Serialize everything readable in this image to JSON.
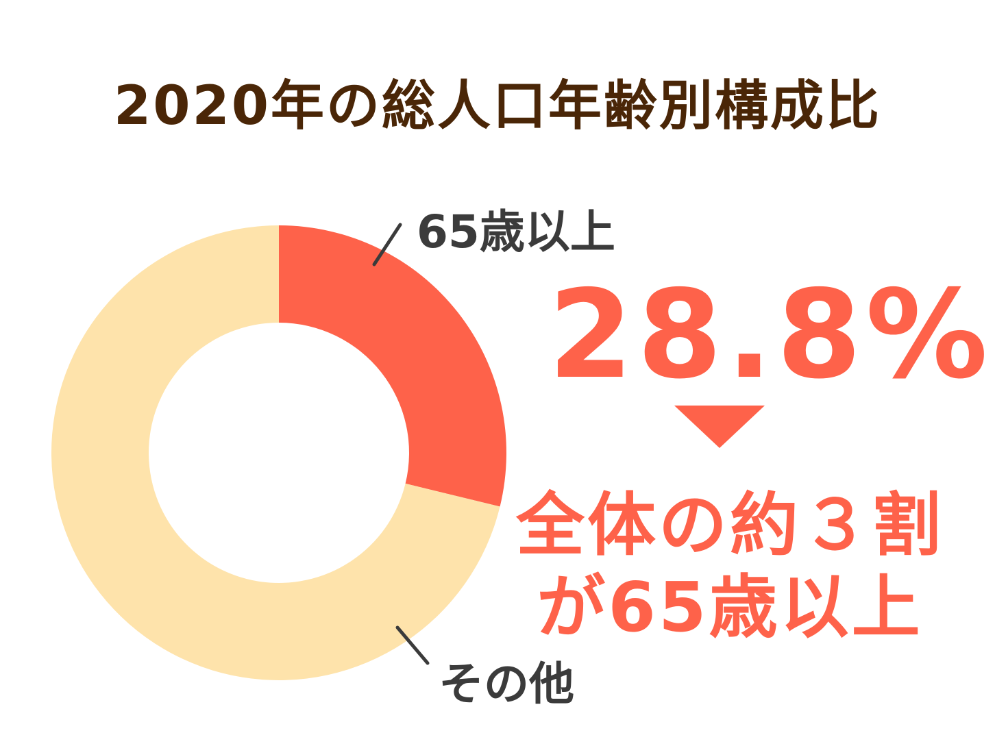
{
  "title": "2020年の総人口年齢別構成比",
  "chart_data": {
    "type": "pie",
    "title": "2020年の総人口年齢別構成比",
    "categories": [
      "65歳以上",
      "その他"
    ],
    "values": [
      28.8,
      71.2
    ],
    "colors": [
      "#fe624a",
      "#fee3ab"
    ]
  },
  "labels": {
    "senior": "65歳以上",
    "other": "その他"
  },
  "highlight": {
    "percent": "28.8%",
    "line1": "全体の約３割",
    "line2": "が65歳以上"
  },
  "colors": {
    "accent": "#fe624a",
    "other_slice": "#fee3ab",
    "title": "#4a2607",
    "label": "#3b3b3b"
  }
}
